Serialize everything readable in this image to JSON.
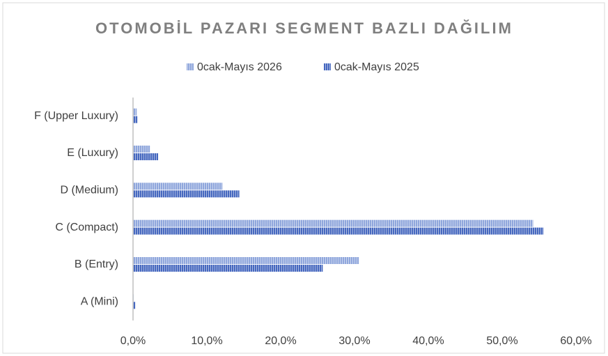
{
  "chart_data": {
    "type": "barh",
    "title": "OTOMOBİL PAZARI SEGMENT BAZLI DAĞILIM",
    "categories": [
      "A (Mini)",
      "B (Entry)",
      "C (Compact)",
      "D (Medium)",
      "E (Luxury)",
      "F (Upper Luxury)"
    ],
    "series": [
      {
        "name": "0cak-Mayıs 2026",
        "color": "#8fa6dc",
        "values": [
          0.1,
          30.6,
          54.2,
          12.1,
          2.3,
          0.5
        ]
      },
      {
        "name": "0cak-Mayıs 2025",
        "color": "#4668bf",
        "values": [
          0.3,
          25.7,
          55.6,
          14.4,
          3.4,
          0.6
        ]
      }
    ],
    "xlim": [
      0,
      60
    ],
    "xticks": [
      {
        "value": 0,
        "label": "0,0%"
      },
      {
        "value": 10,
        "label": "10,0%"
      },
      {
        "value": 20,
        "label": "20,0%"
      },
      {
        "value": 30,
        "label": "30,0%"
      },
      {
        "value": 40,
        "label": "40,0%"
      },
      {
        "value": 50,
        "label": "50,0%"
      },
      {
        "value": 60,
        "label": "60,0%"
      }
    ],
    "legend": "top",
    "grid": false
  }
}
